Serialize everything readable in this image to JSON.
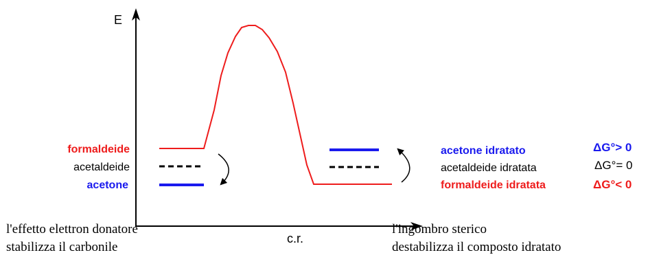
{
  "axes": {
    "y_label": "E",
    "x_label": "c.r."
  },
  "left_labels": {
    "formaldeide": "formaldeide",
    "acetaldeide": "acetaldeide",
    "acetone": "acetone"
  },
  "right_labels": {
    "acetone_idratato": "acetone idratato",
    "acetaldeide_idratata": "acetaldeide idratata",
    "formaldeide_idratata": "formaldeide idratata"
  },
  "delta_g": {
    "positive": "ΔG°> 0",
    "zero": "ΔG°= 0",
    "negative": "ΔG°< 0"
  },
  "captions": {
    "left_line1": "l'effetto elettron donatore",
    "left_line2": "stabilizza il carbonile",
    "right_line1": "l'ingombro sterico",
    "right_line2": "destabilizza il composto idratato"
  },
  "colors": {
    "red": "#ee1c1c",
    "blue": "#1a1aee",
    "black": "#000000"
  }
}
